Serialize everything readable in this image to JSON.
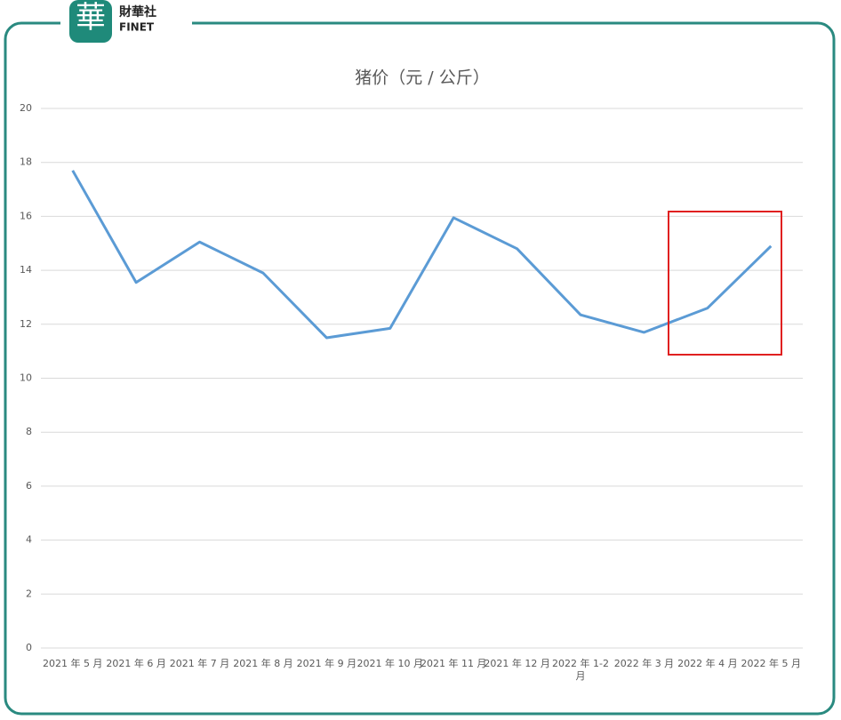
{
  "logo": {
    "mark": "華",
    "name": "財華社",
    "sub": "FINET"
  },
  "chart_data": {
    "type": "line",
    "title": "猪价（元 / 公斤）",
    "categories": [
      "2021 年 5 月",
      "2021 年 6 月",
      "2021 年 7 月",
      "2021 年 8 月",
      "2021 年 9 月",
      "2021 年 10 月",
      "2021 年 11 月",
      "2021 年 12 月",
      "2022 年 1-2 月",
      "2022 年 3 月",
      "2022 年 4 月",
      "2022 年 5 月"
    ],
    "series": [
      {
        "name": "猪价",
        "color": "#5b9bd5",
        "values": [
          17.7,
          13.55,
          15.05,
          13.9,
          11.5,
          11.85,
          15.95,
          14.8,
          12.35,
          11.7,
          12.6,
          14.9
        ]
      }
    ],
    "ylim": [
      0,
      20
    ],
    "yticks": [
      0,
      2,
      4,
      6,
      8,
      10,
      12,
      14,
      16,
      18,
      20
    ],
    "grid": true
  }
}
